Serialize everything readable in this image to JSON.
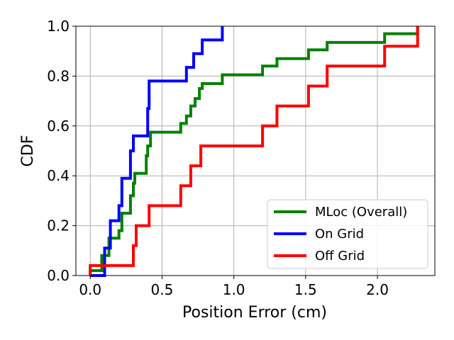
{
  "chart_data": {
    "type": "line",
    "step": "post",
    "xlabel": "Position Error (cm)",
    "ylabel": "CDF",
    "xlim": [
      -0.1,
      2.4
    ],
    "ylim": [
      0.0,
      1.0
    ],
    "xticks": [
      0.0,
      0.5,
      1.0,
      1.5,
      2.0
    ],
    "xtick_labels": [
      "0.0",
      "0.5",
      "1.0",
      "1.5",
      "2.0"
    ],
    "yticks": [
      0.0,
      0.2,
      0.4,
      0.6,
      0.8,
      1.0
    ],
    "ytick_labels": [
      "0.0",
      "0.2",
      "0.4",
      "0.6",
      "0.8",
      "1.0"
    ],
    "grid": true,
    "legend_position": "lower-right",
    "series": [
      {
        "name": "MLoc (Overall)",
        "color": "#008000",
        "points": [
          [
            0.0,
            0.0
          ],
          [
            0.0,
            0.02
          ],
          [
            0.08,
            0.02
          ],
          [
            0.08,
            0.08
          ],
          [
            0.13,
            0.08
          ],
          [
            0.13,
            0.15
          ],
          [
            0.2,
            0.15
          ],
          [
            0.2,
            0.18
          ],
          [
            0.22,
            0.18
          ],
          [
            0.22,
            0.25
          ],
          [
            0.28,
            0.25
          ],
          [
            0.28,
            0.32
          ],
          [
            0.3,
            0.32
          ],
          [
            0.3,
            0.37
          ],
          [
            0.31,
            0.37
          ],
          [
            0.31,
            0.41
          ],
          [
            0.39,
            0.41
          ],
          [
            0.39,
            0.48
          ],
          [
            0.4,
            0.48
          ],
          [
            0.4,
            0.52
          ],
          [
            0.42,
            0.52
          ],
          [
            0.42,
            0.575
          ],
          [
            0.63,
            0.575
          ],
          [
            0.63,
            0.61
          ],
          [
            0.67,
            0.61
          ],
          [
            0.67,
            0.64
          ],
          [
            0.7,
            0.64
          ],
          [
            0.7,
            0.68
          ],
          [
            0.73,
            0.68
          ],
          [
            0.73,
            0.71
          ],
          [
            0.76,
            0.71
          ],
          [
            0.76,
            0.75
          ],
          [
            0.78,
            0.75
          ],
          [
            0.78,
            0.77
          ],
          [
            0.92,
            0.77
          ],
          [
            0.92,
            0.805
          ],
          [
            1.2,
            0.805
          ],
          [
            1.2,
            0.84
          ],
          [
            1.3,
            0.84
          ],
          [
            1.3,
            0.87
          ],
          [
            1.52,
            0.87
          ],
          [
            1.52,
            0.905
          ],
          [
            1.65,
            0.905
          ],
          [
            1.65,
            0.935
          ],
          [
            2.05,
            0.935
          ],
          [
            2.05,
            0.97
          ],
          [
            2.28,
            0.97
          ],
          [
            2.28,
            1.0
          ]
        ]
      },
      {
        "name": "On Grid",
        "color": "#0000ff",
        "points": [
          [
            0.0,
            0.0
          ],
          [
            0.1,
            0.0
          ],
          [
            0.1,
            0.11
          ],
          [
            0.14,
            0.11
          ],
          [
            0.14,
            0.22
          ],
          [
            0.2,
            0.22
          ],
          [
            0.2,
            0.28
          ],
          [
            0.22,
            0.28
          ],
          [
            0.22,
            0.39
          ],
          [
            0.28,
            0.39
          ],
          [
            0.28,
            0.5
          ],
          [
            0.3,
            0.5
          ],
          [
            0.3,
            0.56
          ],
          [
            0.4,
            0.56
          ],
          [
            0.4,
            0.67
          ],
          [
            0.41,
            0.67
          ],
          [
            0.41,
            0.78
          ],
          [
            0.67,
            0.78
          ],
          [
            0.67,
            0.835
          ],
          [
            0.72,
            0.835
          ],
          [
            0.72,
            0.89
          ],
          [
            0.78,
            0.89
          ],
          [
            0.78,
            0.945
          ],
          [
            0.92,
            0.945
          ],
          [
            0.92,
            1.0
          ]
        ]
      },
      {
        "name": "Off Grid",
        "color": "#ff0000",
        "points": [
          [
            0.0,
            0.0
          ],
          [
            0.0,
            0.04
          ],
          [
            0.3,
            0.04
          ],
          [
            0.3,
            0.12
          ],
          [
            0.32,
            0.12
          ],
          [
            0.32,
            0.2
          ],
          [
            0.41,
            0.2
          ],
          [
            0.41,
            0.28
          ],
          [
            0.63,
            0.28
          ],
          [
            0.63,
            0.36
          ],
          [
            0.7,
            0.36
          ],
          [
            0.7,
            0.44
          ],
          [
            0.77,
            0.44
          ],
          [
            0.77,
            0.52
          ],
          [
            1.2,
            0.52
          ],
          [
            1.2,
            0.6
          ],
          [
            1.3,
            0.6
          ],
          [
            1.3,
            0.68
          ],
          [
            1.52,
            0.68
          ],
          [
            1.52,
            0.76
          ],
          [
            1.65,
            0.76
          ],
          [
            1.65,
            0.84
          ],
          [
            2.05,
            0.84
          ],
          [
            2.05,
            0.92
          ],
          [
            2.28,
            0.92
          ],
          [
            2.28,
            1.0
          ]
        ]
      }
    ]
  }
}
